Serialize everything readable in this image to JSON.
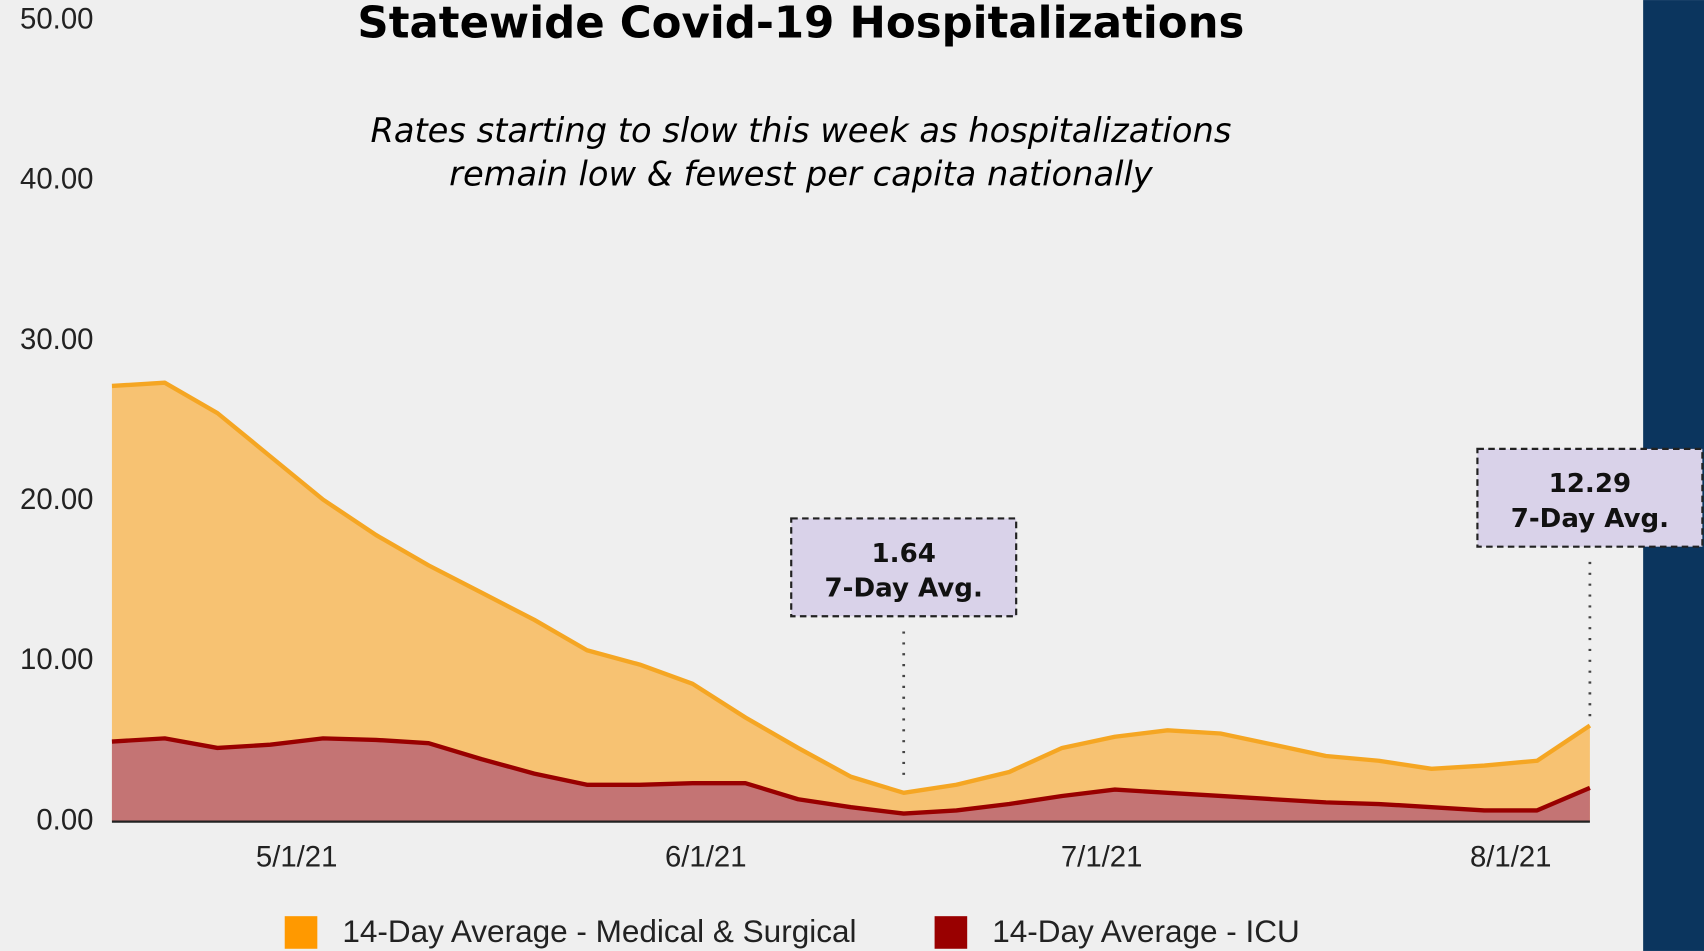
{
  "chart_data": {
    "type": "area",
    "title": "Statewide Covid-19 Hospitalizations",
    "subtitle": [
      "Rates starting to slow this week as hospitalizations",
      "remain low & fewest per capita nationally"
    ],
    "x": [
      "4/17/21",
      "4/21/21",
      "4/25/21",
      "4/29/21",
      "5/3/21",
      "5/7/21",
      "5/11/21",
      "5/15/21",
      "5/19/21",
      "5/23/21",
      "5/27/21",
      "5/31/21",
      "6/4/21",
      "6/8/21",
      "6/12/21",
      "6/16/21",
      "6/20/21",
      "6/24/21",
      "6/28/21",
      "7/2/21",
      "7/6/21",
      "7/10/21",
      "7/14/21",
      "7/18/21",
      "7/22/21",
      "7/26/21",
      "7/30/21",
      "8/3/21",
      "8/7/21"
    ],
    "series": [
      {
        "name": "14-Day Average - Medical & Surgical",
        "color": "#f7c272",
        "line_color": "#f5a623",
        "values": [
          27.2,
          27.4,
          25.5,
          22.8,
          20.1,
          17.9,
          16.0,
          14.3,
          12.6,
          10.7,
          9.8,
          8.6,
          6.5,
          4.6,
          2.8,
          1.8,
          2.3,
          3.1,
          4.6,
          5.3,
          5.7,
          5.5,
          4.8,
          4.1,
          3.8,
          3.3,
          3.5,
          3.8,
          6.0
        ]
      },
      {
        "name": "14-Day Average - ICU",
        "color": "#c47474",
        "line_color": "#990000",
        "values": [
          5.0,
          5.2,
          4.6,
          4.8,
          5.2,
          5.1,
          4.9,
          3.9,
          3.0,
          2.3,
          2.3,
          2.4,
          2.4,
          1.4,
          0.9,
          0.5,
          0.7,
          1.1,
          1.6,
          2.0,
          1.8,
          1.6,
          1.4,
          1.2,
          1.1,
          0.9,
          0.7,
          0.7,
          2.1
        ]
      }
    ],
    "xlim": [
      "4/17/21",
      "8/7/21"
    ],
    "xticks": [
      "5/1/21",
      "6/1/21",
      "7/1/21",
      "8/1/21"
    ],
    "ylim": [
      0,
      50
    ],
    "yticks": [
      {
        "value": 0,
        "label": "0.00"
      },
      {
        "value": 10,
        "label": "10.00"
      },
      {
        "value": 20,
        "label": "20.00"
      },
      {
        "value": 30,
        "label": "30.00"
      },
      {
        "value": 40,
        "label": "40.00"
      },
      {
        "value": 50,
        "label": "50.00"
      }
    ],
    "annotations": [
      {
        "x": "6/16/21",
        "lines": [
          "1.64",
          "7-Day Avg."
        ]
      },
      {
        "x": "8/7/21",
        "lines": [
          "12.29",
          "7-Day Avg."
        ]
      }
    ]
  }
}
